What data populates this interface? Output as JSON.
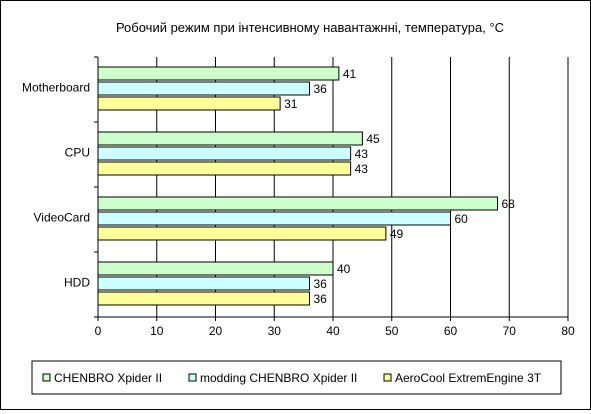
{
  "chart_data": {
    "type": "bar",
    "orientation": "horizontal",
    "title": "Робочий режим при інтенсивному навантажнні, температура, °С",
    "categories": [
      "Motherboard",
      "CPU",
      "VideoCard",
      "HDD"
    ],
    "series": [
      {
        "name": "CHENBRO Xpider II",
        "values": [
          41,
          45,
          68,
          40
        ],
        "color": "#ccffcc"
      },
      {
        "name": "modding CHENBRO Xpider II",
        "values": [
          36,
          43,
          60,
          36
        ],
        "color": "#ccffff"
      },
      {
        "name": "AeroCool ExtremEngine 3T",
        "values": [
          31,
          43,
          49,
          36
        ],
        "color": "#ffff99"
      }
    ],
    "xlim": [
      0,
      80
    ],
    "xticks": [
      0,
      10,
      20,
      30,
      40,
      50,
      60,
      70,
      80
    ],
    "grid": true,
    "data_labels": true,
    "legend_position": "bottom"
  }
}
